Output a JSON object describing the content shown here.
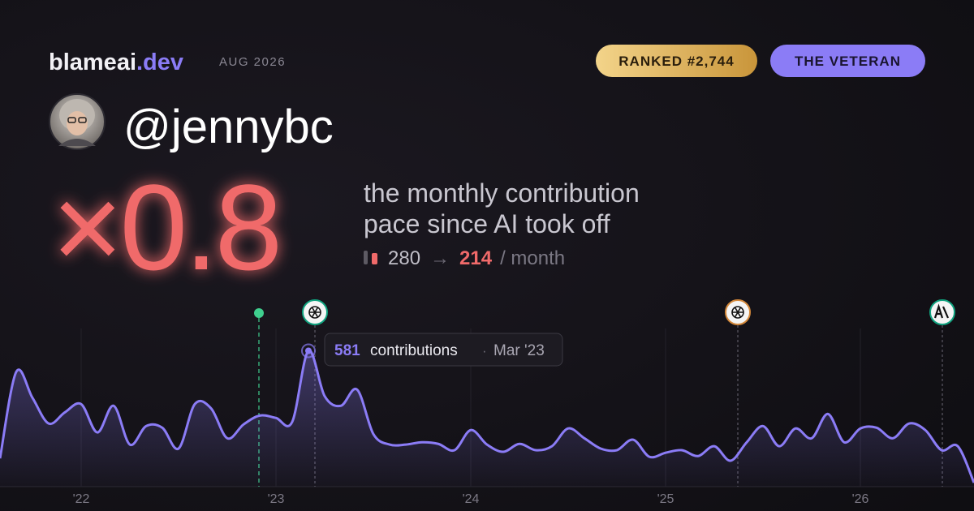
{
  "header": {
    "brand": "blameai",
    "brand_tld": ".dev",
    "period": "AUG 2026",
    "rank": "RANKED #2,744",
    "badge": "THE VETERAN"
  },
  "profile": {
    "handle": "@jennybc"
  },
  "stat": {
    "multiplier": "×0.8",
    "caption": [
      "the monthly contribution",
      "pace since AI took off"
    ],
    "before": 280,
    "arrow": "→",
    "after": 214,
    "unit": "/ month"
  },
  "tooltip": {
    "label": "contributions",
    "separator": "·",
    "date": "Mar '23"
  },
  "chart_data": {
    "type": "line",
    "color": "#8b7cf6",
    "x": [
      "2021-08",
      "2021-09",
      "2021-10",
      "2021-11",
      "2021-12",
      "2022-01",
      "2022-02",
      "2022-03",
      "2022-04",
      "2022-05",
      "2022-06",
      "2022-07",
      "2022-08",
      "2022-09",
      "2022-10",
      "2022-11",
      "2022-12",
      "2023-01",
      "2023-02",
      "2023-03",
      "2023-04",
      "2023-05",
      "2023-06",
      "2023-07",
      "2023-08",
      "2023-09",
      "2023-10",
      "2023-11",
      "2023-12",
      "2024-01",
      "2024-02",
      "2024-03",
      "2024-04",
      "2024-05",
      "2024-06",
      "2024-07",
      "2024-08",
      "2024-09",
      "2024-10",
      "2024-11",
      "2024-12",
      "2025-01",
      "2025-02",
      "2025-03",
      "2025-04",
      "2025-05",
      "2025-06",
      "2025-07",
      "2025-08",
      "2025-09",
      "2025-10",
      "2025-11",
      "2025-12",
      "2026-01",
      "2026-02",
      "2026-03",
      "2026-04",
      "2026-05",
      "2026-06",
      "2026-07",
      "2026-08"
    ],
    "values": [
      121,
      491,
      380,
      270,
      318,
      353,
      232,
      346,
      180,
      259,
      252,
      163,
      353,
      335,
      207,
      266,
      304,
      294,
      277,
      581,
      387,
      346,
      415,
      225,
      180,
      180,
      190,
      183,
      156,
      242,
      180,
      149,
      183,
      156,
      173,
      249,
      207,
      163,
      156,
      201,
      128,
      145,
      156,
      131,
      173,
      111,
      190,
      259,
      173,
      249,
      207,
      311,
      190,
      249,
      252,
      207,
      270,
      242,
      156,
      173,
      17
    ],
    "xlim": [
      "2021-08",
      "2026-08"
    ],
    "ylim": [
      0,
      600
    ],
    "xticks": [
      {
        "value": "2022-01",
        "label": "'22"
      },
      {
        "value": "2023-01",
        "label": "'23"
      },
      {
        "value": "2024-01",
        "label": "'24"
      },
      {
        "value": "2025-01",
        "label": "'25"
      },
      {
        "value": "2026-01",
        "label": "'26"
      }
    ],
    "grid": true
  }
}
